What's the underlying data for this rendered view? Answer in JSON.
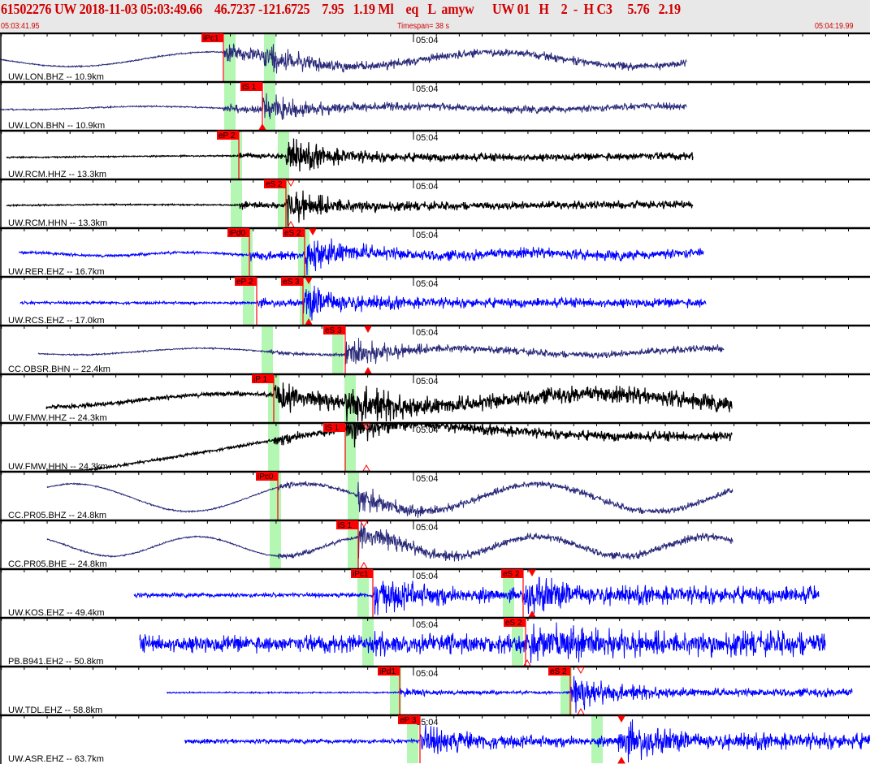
{
  "header": {
    "title": "61502276 UW 2018-11-03 05:03:49.66    46.7237 -121.6725    7.95   1.19 Ml    eq   L  amyw      UW 01   H    2  -  H C3     5.76   2.19",
    "start_time": "05:03:41.95",
    "timespan": "Timespan= 38 s",
    "end_time": "05:04:19.99"
  },
  "time_tick_label": "05:04",
  "colors": {
    "pick": "#ff0000",
    "window": "#b3f7b3",
    "bh": "#2a2a7a",
    "hh": "#000000",
    "eh": "#0000ff"
  },
  "traces": [
    {
      "label": "UW.LON.BHZ -- 10.9km",
      "color": "#2a2a7a",
      "picks": [
        "iPc1"
      ]
    },
    {
      "label": "UW.LON.BHN -- 10.9km",
      "color": "#2a2a7a",
      "picks": [
        "iS 1"
      ]
    },
    {
      "label": "UW.RCM.HHZ -- 13.3km",
      "color": "#000000",
      "picks": [
        "eP 2"
      ]
    },
    {
      "label": "UW.RCM.HHN -- 13.3km",
      "color": "#000000",
      "picks": [
        "eS 2"
      ]
    },
    {
      "label": "UW.RER.EHZ -- 16.7km",
      "color": "#0000ff",
      "picks": [
        "iPd0",
        "eS 2"
      ]
    },
    {
      "label": "UW.RCS.EHZ -- 17.0km",
      "color": "#0000ff",
      "picks": [
        "eP 2",
        "eS 3"
      ]
    },
    {
      "label": "CC.OBSR.BHN -- 22.4km",
      "color": "#2a2a7a",
      "picks": [
        "eS 3"
      ]
    },
    {
      "label": "UW.FMW.HHZ -- 24.3km",
      "color": "#000000",
      "picks": [
        "iP 1"
      ]
    },
    {
      "label": "UW.FMW.HHN -- 24.3km",
      "color": "#000000",
      "picks": [
        "iS 1"
      ]
    },
    {
      "label": "CC.PR05.BHZ -- 24.8km",
      "color": "#2a2a7a",
      "picks": [
        "iPc0"
      ]
    },
    {
      "label": "CC.PR05.BHE -- 24.8km",
      "color": "#2a2a7a",
      "picks": [
        "iS 1"
      ]
    },
    {
      "label": "UW.KOS.EHZ -- 49.4km",
      "color": "#0000ff",
      "picks": [
        "iPc1",
        "eS 2"
      ]
    },
    {
      "label": "PB.B941.EH2 -- 50.8km",
      "color": "#0000ff",
      "picks": [
        "eS 2"
      ]
    },
    {
      "label": "UW.TDL.EHZ -- 58.8km",
      "color": "#0000ff",
      "picks": [
        "iPd1",
        "eS 2"
      ]
    },
    {
      "label": "UW.ASR.EHZ -- 63.7km",
      "color": "#0000ff",
      "picks": [
        "eP 3"
      ]
    }
  ]
}
